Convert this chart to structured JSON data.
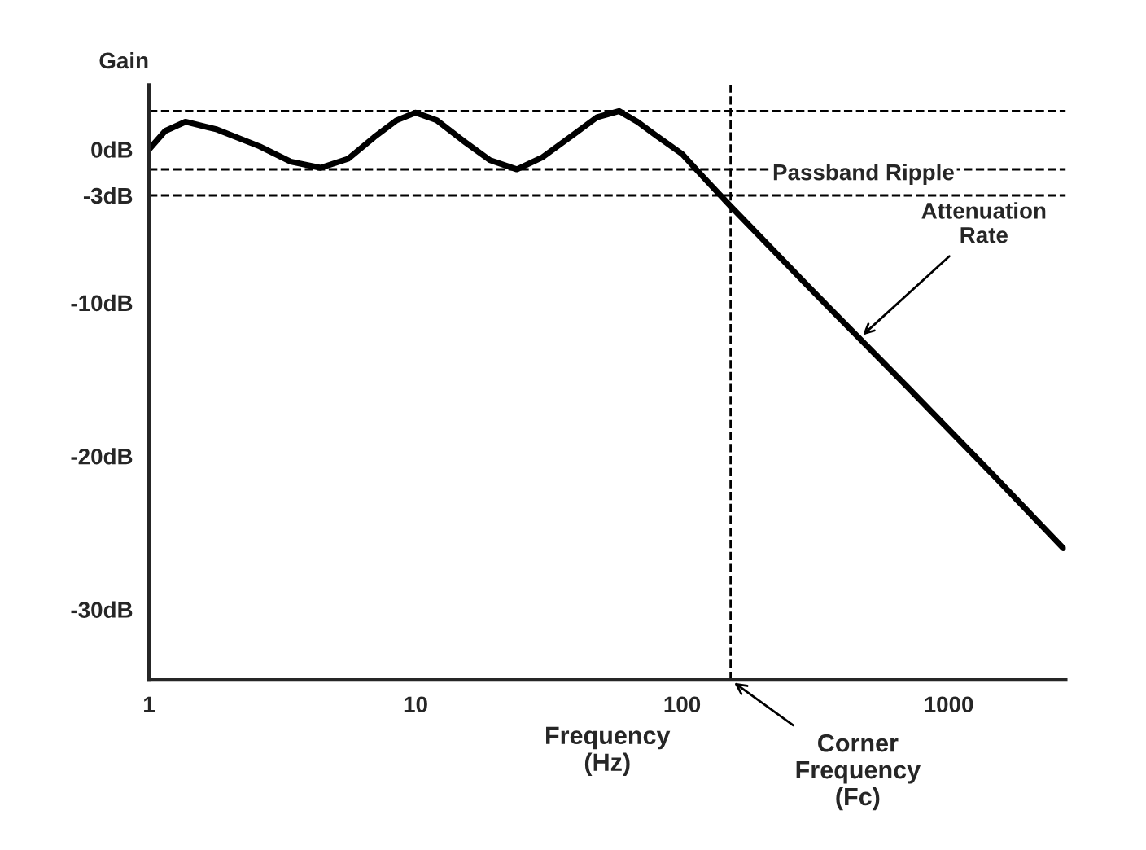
{
  "chart_data": {
    "type": "line",
    "ylabel": "Gain",
    "xlabel": "Frequency\n(Hz)",
    "x": [
      1,
      1.15,
      1.37,
      1.8,
      2.6,
      3.4,
      4.4,
      5.6,
      7,
      8.5,
      10,
      12,
      15,
      19,
      24,
      30,
      38,
      48,
      58,
      68,
      80,
      100,
      120,
      152,
      300,
      710,
      1500,
      2690
    ],
    "series": [
      {
        "color": "#000000",
        "values": [
          0,
          1.2,
          1.8,
          1.3,
          0.2,
          -0.8,
          -1.2,
          -0.6,
          0.8,
          1.9,
          2.4,
          1.9,
          0.6,
          -0.7,
          -1.3,
          -0.5,
          0.8,
          2.1,
          2.5,
          1.8,
          0.9,
          -0.3,
          -1.8,
          -3.7,
          -9,
          -15.6,
          -21.4,
          -26
        ]
      }
    ],
    "log": "x",
    "xlim": [
      1,
      2750
    ],
    "xticks": [
      1,
      10,
      100,
      1000
    ],
    "ylim": [
      -34.6,
      4.2
    ],
    "yticks": [
      {
        "value": 0,
        "label": "0dB"
      },
      {
        "value": -3,
        "label": "-3dB"
      },
      {
        "value": -10,
        "label": "-10dB"
      },
      {
        "value": -20,
        "label": "-20dB"
      },
      {
        "value": -30,
        "label": "-30dB"
      }
    ],
    "grid": false,
    "marker": "none",
    "line_style": "solid",
    "ref_lines": [
      {
        "axis": "y",
        "value": 2.5,
        "line_style": "dashed",
        "color": "#000000"
      },
      {
        "axis": "y",
        "value": -1.3,
        "line_style": "dashed",
        "color": "#000000"
      },
      {
        "axis": "y",
        "value": -3,
        "line_style": "dashed",
        "color": "#000000"
      },
      {
        "axis": "x",
        "value": 152,
        "label": "Corner\nFrequency\n(Fc)",
        "line_style": "dashed",
        "color": "#000000"
      }
    ],
    "annotations": [
      "Passband Ripple",
      {
        "text": "Attenuation\nRate",
        "x": 463,
        "y": -12.3
      }
    ]
  }
}
